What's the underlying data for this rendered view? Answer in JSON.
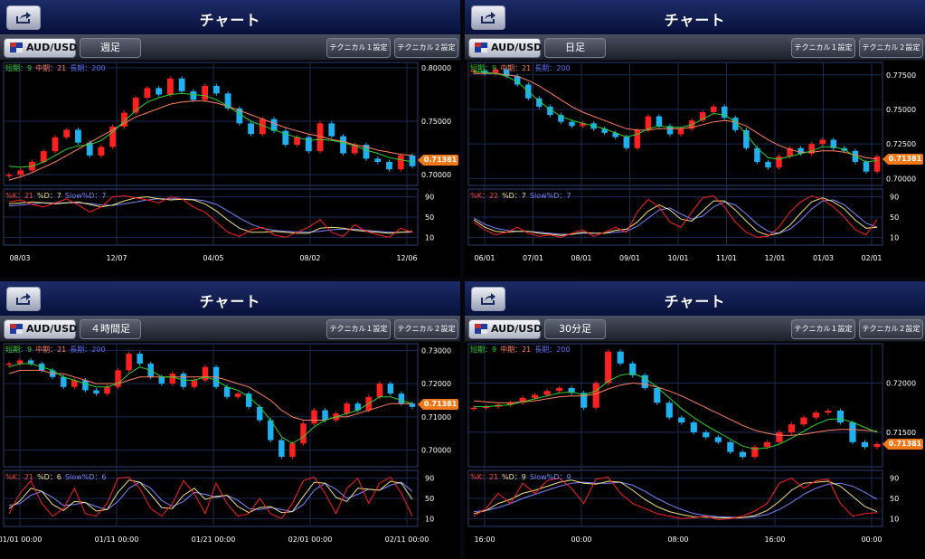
{
  "panels": [
    {
      "title": "チャート",
      "pair": "AUD/USD",
      "period": "週足",
      "tech1": "テクニカル１設定",
      "tech2": "テクニカル２設定",
      "ma_legend": {
        "short": "短期：9",
        "mid": "中期：21",
        "long": "長期：200"
      },
      "stoch_legend": {
        "k": "%K：21",
        "d": "%D：7",
        "slow": "Slow%D：7"
      },
      "price_label": "0.71381",
      "colors": {
        "up": "#ff2020",
        "down": "#20b0f0",
        "short_ma": "#30d030",
        "mid_ma": "#ff8060",
        "long_ma": "#6070ff"
      },
      "chart_data": {
        "type": "candlestick",
        "title": "",
        "xlabel": "",
        "ylabel": "",
        "ylim": [
          0.69,
          0.805
        ],
        "yticks": [
          "0.80000",
          "0.75000",
          "0.70000"
        ],
        "ytick_values": [
          0.8,
          0.75,
          0.7
        ],
        "xticks": [
          "08/03",
          "12/07",
          "04/05",
          "08/02",
          "12/06"
        ],
        "close": [
          0.7,
          0.704,
          0.712,
          0.722,
          0.735,
          0.742,
          0.73,
          0.718,
          0.726,
          0.745,
          0.758,
          0.772,
          0.781,
          0.775,
          0.79,
          0.778,
          0.77,
          0.783,
          0.776,
          0.762,
          0.748,
          0.738,
          0.752,
          0.741,
          0.728,
          0.735,
          0.722,
          0.748,
          0.736,
          0.72,
          0.728,
          0.715,
          0.712,
          0.705,
          0.718,
          0.708
        ],
        "ma_short": [
          0.708,
          0.707,
          0.708,
          0.712,
          0.718,
          0.724,
          0.727,
          0.728,
          0.732,
          0.74,
          0.75,
          0.76,
          0.768,
          0.772,
          0.775,
          0.776,
          0.775,
          0.774,
          0.77,
          0.764,
          0.757,
          0.75,
          0.746,
          0.742,
          0.738,
          0.735,
          0.732,
          0.733,
          0.732,
          0.73,
          0.727,
          0.723,
          0.72,
          0.716,
          0.714,
          0.712
        ],
        "ma_mid": [
          0.695,
          0.698,
          0.702,
          0.707,
          0.712,
          0.718,
          0.724,
          0.73,
          0.736,
          0.742,
          0.748,
          0.754,
          0.758,
          0.762,
          0.766,
          0.768,
          0.769,
          0.769,
          0.767,
          0.764,
          0.76,
          0.756,
          0.752,
          0.748,
          0.744,
          0.741,
          0.738,
          0.736,
          0.733,
          0.731,
          0.728,
          0.726,
          0.723,
          0.721,
          0.719,
          0.718
        ],
        "stoch_k": [
          80,
          84,
          75,
          70,
          78,
          86,
          74,
          60,
          70,
          90,
          92,
          88,
          84,
          78,
          90,
          86,
          70,
          60,
          40,
          20,
          12,
          25,
          30,
          15,
          10,
          20,
          30,
          45,
          20,
          12,
          35,
          22,
          15,
          10,
          28,
          20
        ],
        "stoch_d": [
          76,
          78,
          80,
          78,
          76,
          78,
          80,
          75,
          70,
          74,
          82,
          88,
          90,
          86,
          84,
          85,
          84,
          76,
          62,
          44,
          28,
          20,
          20,
          22,
          20,
          18,
          18,
          28,
          30,
          28,
          24,
          22,
          20,
          18,
          20,
          22
        ],
        "stoch_slow": [
          72,
          74,
          76,
          78,
          78,
          78,
          78,
          77,
          74,
          73,
          76,
          80,
          84,
          86,
          86,
          86,
          85,
          82,
          75,
          62,
          48,
          36,
          28,
          24,
          22,
          21,
          20,
          22,
          25,
          26,
          26,
          24,
          22,
          20,
          20,
          20
        ],
        "stoch_ticks": [
          "90",
          "50",
          "10"
        ]
      }
    },
    {
      "title": "チャート",
      "pair": "AUD/USD",
      "period": "日足",
      "tech1": "テクニカル１設定",
      "tech2": "テクニカル２設定",
      "ma_legend": {
        "short": "短期：9",
        "mid": "中期：21",
        "long": "長期：200"
      },
      "stoch_legend": {
        "k": "%K：22",
        "d": "%D：7",
        "slow": "Slow%D：7"
      },
      "price_label": "0.71381",
      "colors": {
        "up": "#ff2020",
        "down": "#20b0f0",
        "short_ma": "#30d030",
        "mid_ma": "#ff8060",
        "long_ma": "#6070ff"
      },
      "chart_data": {
        "type": "candlestick",
        "title": "",
        "xlabel": "",
        "ylabel": "",
        "ylim": [
          0.695,
          0.784
        ],
        "yticks": [
          "0.77500",
          "0.75000",
          "0.72500",
          "0.70000"
        ],
        "ytick_values": [
          0.775,
          0.75,
          0.725,
          0.7
        ],
        "xticks": [
          "06/01",
          "07/01",
          "08/01",
          "09/01",
          "10/01",
          "11/01",
          "12/01",
          "01/03",
          "02/01"
        ],
        "close": [
          0.778,
          0.776,
          0.779,
          0.774,
          0.768,
          0.758,
          0.752,
          0.746,
          0.741,
          0.738,
          0.74,
          0.736,
          0.733,
          0.73,
          0.722,
          0.735,
          0.745,
          0.738,
          0.732,
          0.736,
          0.742,
          0.748,
          0.752,
          0.744,
          0.735,
          0.722,
          0.712,
          0.708,
          0.716,
          0.722,
          0.718,
          0.725,
          0.728,
          0.722,
          0.72,
          0.712,
          0.705,
          0.716
        ],
        "ma_short": [
          0.777,
          0.777,
          0.776,
          0.774,
          0.77,
          0.763,
          0.756,
          0.75,
          0.745,
          0.742,
          0.74,
          0.738,
          0.736,
          0.733,
          0.73,
          0.732,
          0.736,
          0.738,
          0.737,
          0.737,
          0.739,
          0.743,
          0.747,
          0.746,
          0.741,
          0.732,
          0.722,
          0.715,
          0.714,
          0.716,
          0.718,
          0.72,
          0.723,
          0.723,
          0.721,
          0.716,
          0.712,
          0.713
        ],
        "ma_mid": [
          0.776,
          0.776,
          0.776,
          0.775,
          0.774,
          0.771,
          0.767,
          0.762,
          0.757,
          0.752,
          0.748,
          0.745,
          0.742,
          0.739,
          0.736,
          0.735,
          0.735,
          0.736,
          0.736,
          0.736,
          0.737,
          0.739,
          0.741,
          0.742,
          0.741,
          0.738,
          0.733,
          0.728,
          0.724,
          0.721,
          0.719,
          0.719,
          0.72,
          0.72,
          0.719,
          0.717,
          0.715,
          0.714
        ],
        "stoch_k": [
          40,
          25,
          15,
          20,
          30,
          18,
          12,
          15,
          10,
          18,
          25,
          12,
          20,
          30,
          20,
          60,
          85,
          70,
          40,
          30,
          60,
          88,
          92,
          70,
          40,
          20,
          10,
          12,
          30,
          60,
          80,
          92,
          85,
          70,
          50,
          25,
          15,
          45
        ],
        "stoch_d": [
          45,
          30,
          22,
          20,
          22,
          22,
          18,
          16,
          14,
          16,
          20,
          18,
          18,
          24,
          26,
          40,
          62,
          74,
          64,
          46,
          42,
          62,
          82,
          82,
          64,
          42,
          22,
          14,
          18,
          34,
          58,
          80,
          88,
          80,
          66,
          44,
          28,
          30
        ],
        "stoch_slow": [
          48,
          36,
          28,
          24,
          22,
          22,
          20,
          18,
          16,
          16,
          18,
          18,
          18,
          20,
          22,
          32,
          48,
          64,
          68,
          56,
          46,
          52,
          70,
          80,
          74,
          56,
          36,
          22,
          18,
          26,
          44,
          66,
          82,
          84,
          74,
          56,
          38,
          30
        ],
        "stoch_ticks": [
          "90",
          "50",
          "10"
        ]
      }
    },
    {
      "title": "チャート",
      "pair": "AUD/USD",
      "period": "４時間足",
      "tech1": "テクニカル１設定",
      "tech2": "テクニカル２設定",
      "ma_legend": {
        "short": "短期：9",
        "mid": "中期：21",
        "long": "長期：200"
      },
      "stoch_legend": {
        "k": "%K：21",
        "d": "%D：6",
        "slow": "Slow%D：6"
      },
      "price_label": "0.71381",
      "colors": {
        "up": "#ff2020",
        "down": "#20b0f0",
        "short_ma": "#30d030",
        "mid_ma": "#ff8060",
        "long_ma": "#6070ff"
      },
      "chart_data": {
        "type": "candlestick",
        "title": "",
        "xlabel": "",
        "ylabel": "",
        "ylim": [
          0.695,
          0.732
        ],
        "yticks": [
          "0.73000",
          "0.72000",
          "0.71000",
          "0.70000"
        ],
        "ytick_values": [
          0.73,
          0.72,
          0.71,
          0.7
        ],
        "xticks": [
          "01/01 00:00",
          "01/11 00:00",
          "01/21 00:00",
          "02/01 00:00",
          "02/11 00:00"
        ],
        "close": [
          0.726,
          0.727,
          0.726,
          0.724,
          0.722,
          0.719,
          0.721,
          0.718,
          0.717,
          0.719,
          0.724,
          0.729,
          0.726,
          0.722,
          0.72,
          0.723,
          0.719,
          0.721,
          0.725,
          0.719,
          0.716,
          0.717,
          0.713,
          0.709,
          0.703,
          0.698,
          0.702,
          0.708,
          0.712,
          0.709,
          0.711,
          0.714,
          0.712,
          0.716,
          0.72,
          0.717,
          0.714,
          0.713
        ],
        "ma_short": [
          0.725,
          0.726,
          0.726,
          0.725,
          0.724,
          0.722,
          0.721,
          0.72,
          0.719,
          0.719,
          0.72,
          0.723,
          0.725,
          0.724,
          0.722,
          0.722,
          0.721,
          0.721,
          0.722,
          0.721,
          0.719,
          0.718,
          0.716,
          0.713,
          0.709,
          0.704,
          0.702,
          0.704,
          0.707,
          0.709,
          0.71,
          0.711,
          0.712,
          0.714,
          0.716,
          0.716,
          0.715,
          0.714
        ],
        "ma_mid": [
          0.723,
          0.724,
          0.724,
          0.724,
          0.723,
          0.723,
          0.722,
          0.721,
          0.72,
          0.72,
          0.72,
          0.721,
          0.722,
          0.722,
          0.722,
          0.722,
          0.722,
          0.722,
          0.722,
          0.722,
          0.721,
          0.72,
          0.719,
          0.717,
          0.715,
          0.712,
          0.71,
          0.709,
          0.709,
          0.709,
          0.71,
          0.71,
          0.711,
          0.712,
          0.713,
          0.714,
          0.714,
          0.714
        ],
        "stoch_k": [
          20,
          60,
          85,
          40,
          15,
          30,
          70,
          20,
          15,
          40,
          90,
          92,
          70,
          30,
          15,
          40,
          85,
          60,
          20,
          80,
          40,
          15,
          20,
          50,
          20,
          10,
          40,
          85,
          92,
          60,
          20,
          70,
          90,
          40,
          80,
          92,
          60,
          15
        ],
        "stoch_d": [
          30,
          45,
          70,
          64,
          38,
          26,
          44,
          42,
          25,
          28,
          62,
          86,
          82,
          58,
          32,
          30,
          56,
          70,
          48,
          54,
          56,
          34,
          22,
          32,
          34,
          22,
          24,
          54,
          82,
          80,
          52,
          44,
          70,
          68,
          66,
          84,
          80,
          48
        ],
        "stoch_slow": [
          36,
          40,
          56,
          64,
          52,
          36,
          38,
          42,
          34,
          28,
          44,
          70,
          82,
          70,
          46,
          34,
          44,
          62,
          58,
          52,
          56,
          46,
          30,
          28,
          32,
          28,
          24,
          38,
          66,
          80,
          68,
          50,
          58,
          68,
          66,
          76,
          82,
          64
        ],
        "stoch_ticks": [
          "90",
          "50",
          "10"
        ]
      }
    },
    {
      "title": "チャート",
      "pair": "AUD/USD",
      "period": "30分足",
      "tech1": "テクニカル１設定",
      "tech2": "テクニカル２設定",
      "ma_legend": {
        "short": "短期：9",
        "mid": "中期：21",
        "long": "長期：200"
      },
      "stoch_legend": {
        "k": "%K：21",
        "d": "%D：9",
        "slow": "Slow%D：9"
      },
      "price_label": "0.71381",
      "colors": {
        "up": "#ff2020",
        "down": "#20b0f0",
        "short_ma": "#30d030",
        "mid_ma": "#ff8060",
        "long_ma": "#6070ff"
      },
      "chart_data": {
        "type": "candlestick",
        "title": "",
        "xlabel": "",
        "ylabel": "",
        "ylim": [
          0.7115,
          0.724
        ],
        "yticks": [
          "0.72000",
          "0.71500"
        ],
        "ytick_values": [
          0.72,
          0.715
        ],
        "xticks": [
          "16:00",
          "00:00",
          "08:00",
          "16:00",
          "00:00"
        ],
        "close": [
          0.7175,
          0.7176,
          0.7178,
          0.718,
          0.7185,
          0.7188,
          0.7192,
          0.7195,
          0.719,
          0.7175,
          0.72,
          0.7232,
          0.722,
          0.7208,
          0.7195,
          0.718,
          0.7165,
          0.716,
          0.715,
          0.7145,
          0.714,
          0.713,
          0.7125,
          0.7135,
          0.714,
          0.715,
          0.7158,
          0.7165,
          0.717,
          0.7172,
          0.716,
          0.714,
          0.7135,
          0.7138
        ],
        "ma_short": [
          0.7176,
          0.7176,
          0.7177,
          0.7178,
          0.7181,
          0.7184,
          0.7187,
          0.719,
          0.7191,
          0.7188,
          0.7192,
          0.7202,
          0.7208,
          0.721,
          0.7205,
          0.7196,
          0.7185,
          0.7174,
          0.7165,
          0.7157,
          0.715,
          0.7143,
          0.7136,
          0.7133,
          0.7134,
          0.7138,
          0.7144,
          0.7151,
          0.7158,
          0.7163,
          0.7164,
          0.716,
          0.7155,
          0.715
        ],
        "ma_mid": [
          0.7182,
          0.7181,
          0.718,
          0.718,
          0.7181,
          0.7182,
          0.7184,
          0.7186,
          0.7187,
          0.7187,
          0.7189,
          0.7194,
          0.7198,
          0.72,
          0.7199,
          0.7196,
          0.7192,
          0.7187,
          0.7181,
          0.7175,
          0.7169,
          0.7163,
          0.7157,
          0.7152,
          0.7149,
          0.7147,
          0.7147,
          0.7148,
          0.715,
          0.7152,
          0.7153,
          0.7153,
          0.7152,
          0.7151
        ],
        "stoch_k": [
          15,
          30,
          60,
          40,
          80,
          60,
          85,
          90,
          70,
          40,
          88,
          92,
          60,
          40,
          30,
          20,
          15,
          10,
          12,
          15,
          8,
          10,
          15,
          25,
          40,
          80,
          90,
          70,
          85,
          88,
          40,
          15,
          20,
          22
        ],
        "stoch_d": [
          20,
          26,
          40,
          48,
          60,
          66,
          74,
          82,
          86,
          80,
          78,
          84,
          82,
          66,
          48,
          34,
          24,
          18,
          14,
          13,
          12,
          11,
          12,
          16,
          26,
          44,
          66,
          80,
          82,
          84,
          74,
          54,
          34,
          24
        ],
        "stoch_slow": [
          24,
          26,
          32,
          40,
          50,
          58,
          66,
          74,
          80,
          82,
          80,
          80,
          82,
          76,
          64,
          50,
          38,
          28,
          20,
          16,
          14,
          13,
          12,
          14,
          18,
          28,
          42,
          58,
          70,
          78,
          80,
          74,
          62,
          48
        ],
        "stoch_ticks": [
          "90",
          "50",
          "10"
        ]
      }
    }
  ]
}
